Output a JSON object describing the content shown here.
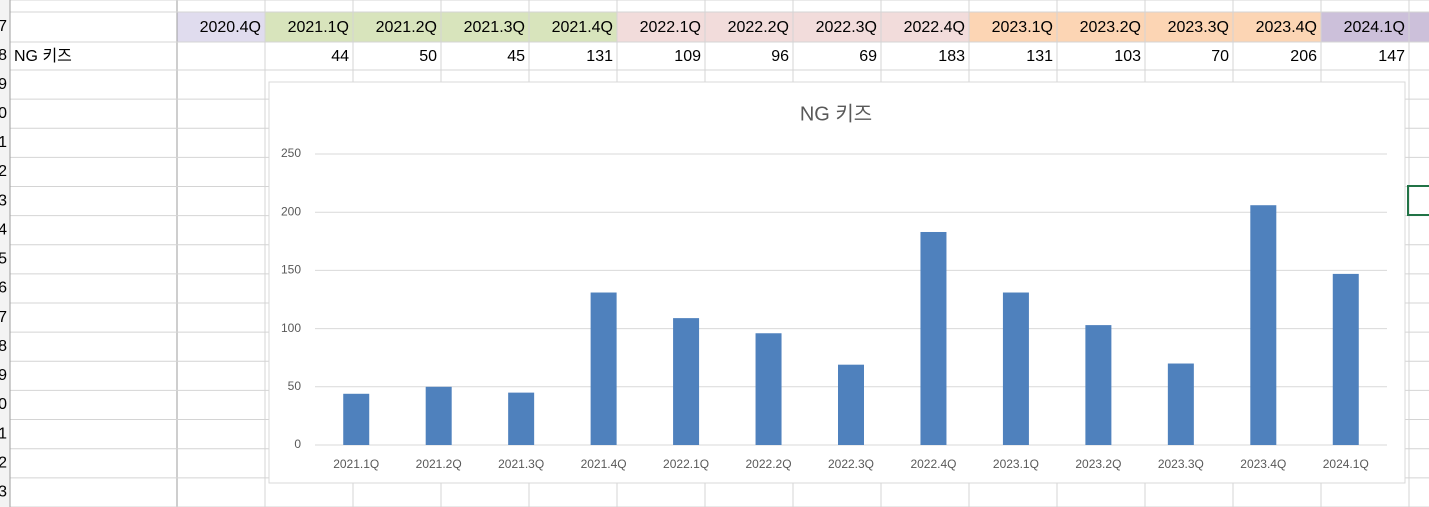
{
  "sheet": {
    "row_numbers": [
      "7",
      "8",
      "9",
      "0",
      "1",
      "2",
      "3",
      "4",
      "5",
      "6",
      "7",
      "8",
      "9",
      "0",
      "1",
      "2",
      "3"
    ],
    "header_row": [
      "2020.4Q",
      "2021.1Q",
      "2021.2Q",
      "2021.3Q",
      "2021.4Q",
      "2022.1Q",
      "2022.2Q",
      "2022.3Q",
      "2022.4Q",
      "2023.1Q",
      "2023.2Q",
      "2023.3Q",
      "2023.4Q",
      "2024.1Q"
    ],
    "header_colors": [
      "#e0dcee",
      "#d8e4bc",
      "#d8e4bc",
      "#d8e4bc",
      "#d8e4bc",
      "#f2dcdb",
      "#f2dcdb",
      "#f2dcdb",
      "#f2dcdb",
      "#fcd5b4",
      "#fcd5b4",
      "#fcd5b4",
      "#fcd5b4",
      "#ccc0da"
    ],
    "data_row": {
      "label": "NG 키즈",
      "values": [
        null,
        44,
        50,
        45,
        131,
        109,
        96,
        69,
        183,
        131,
        103,
        70,
        206,
        147
      ]
    }
  },
  "chart_data": {
    "type": "bar",
    "title": "NG 키즈",
    "categories": [
      "2021.1Q",
      "2021.2Q",
      "2021.3Q",
      "2021.4Q",
      "2022.1Q",
      "2022.2Q",
      "2022.3Q",
      "2022.4Q",
      "2023.1Q",
      "2023.2Q",
      "2023.3Q",
      "2023.4Q",
      "2024.1Q"
    ],
    "values": [
      44,
      50,
      45,
      131,
      109,
      96,
      69,
      183,
      131,
      103,
      70,
      206,
      147
    ],
    "color": "#4f81bd",
    "ylim": [
      0,
      250
    ],
    "yticks": [
      0,
      50,
      100,
      150,
      200,
      250
    ],
    "grid": true
  }
}
